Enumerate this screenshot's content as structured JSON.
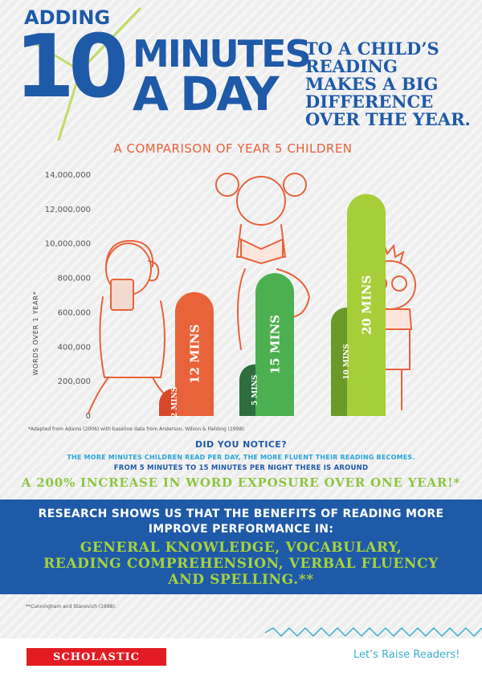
{
  "header": {
    "adding": "ADDING",
    "big_number": "10",
    "minutes": "MINUTES",
    "a_day": "A DAY",
    "subtitle_lines": [
      "TO A CHILD’S",
      "READING",
      "MAKES A BIG",
      "DIFFERENCE",
      "OVER THE YEAR."
    ]
  },
  "chart_data": {
    "type": "bar",
    "title": "A COMPARISON OF YEAR 5 CHILDREN",
    "ylabel": "WORDS OVER 1 YEAR*",
    "xlabel": "",
    "y_tick_labels": [
      "14,000,000",
      "12,000,000",
      "10,000,000",
      "800,000",
      "600,000",
      "400,000",
      "200,000",
      "0"
    ],
    "ylim": [
      0,
      14000000
    ],
    "categories": [
      "2 MINS",
      "12 MINS",
      "5 MINS",
      "15 MINS",
      "10 MINS",
      "20 MINS"
    ],
    "values": [
      1600000,
      7200000,
      3000000,
      8300000,
      6300000,
      12900000
    ],
    "colors": [
      "#d9482a",
      "#e8623a",
      "#2e6e3c",
      "#4caf50",
      "#6b9a2b",
      "#a6ce39"
    ]
  },
  "source_note": "*Adapted from Adams (2006) with baseline data from Anderson, Wilson & Fielding (1998).",
  "notice": {
    "title": "DID YOU NOTICE?",
    "line1": "THE MORE MINUTES CHILDREN READ PER DAY, THE MORE FLUENT THEIR READING BECOMES.",
    "line2": "FROM 5 MINUTES TO 15 MINUTES PER NIGHT THERE IS AROUND",
    "line3": "A 200% INCREASE IN WORD EXPOSURE OVER ONE YEAR!*"
  },
  "research": {
    "line1": "RESEARCH SHOWS US THAT THE BENEFITS OF READING MORE",
    "line2": "IMPROVE PERFORMANCE IN:",
    "green1": "GENERAL KNOWLEDGE, VOCABULARY,",
    "green2": "READING COMPREHENSION, VERBAL FLUENCY",
    "green3": "AND SPELLING.**"
  },
  "citation": "**Cunningham and Stanovich (1998).",
  "footer": {
    "logo": "SCHOLASTIC",
    "slogan": "Let’s Raise Readers!"
  },
  "colors": {
    "blue": "#1f5aa8",
    "orange": "#e8623a",
    "green": "#8cc63f",
    "light_blue": "#29a6d6",
    "red": "#e31b23"
  }
}
